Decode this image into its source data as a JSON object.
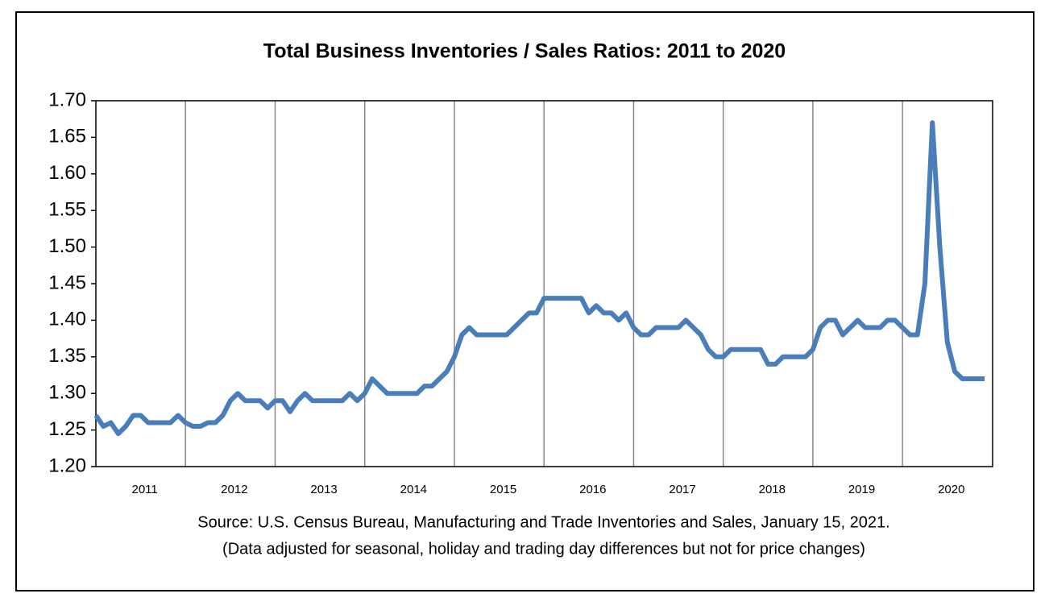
{
  "chart_data": {
    "type": "line",
    "title": "Total Business Inventories / Sales Ratios: 2011 to 2020",
    "source": "Source: U.S. Census Bureau, Manufacturing and Trade Inventories and Sales, January 15, 2021.",
    "note": "(Data adjusted for seasonal, holiday and trading day differences but not for price changes)",
    "categories": [
      null,
      null,
      null,
      null,
      null,
      null,
      "2011",
      null,
      null,
      null,
      null,
      null,
      null,
      null,
      null,
      null,
      null,
      null,
      "2012",
      null,
      null,
      null,
      null,
      null,
      null,
      null,
      null,
      null,
      null,
      null,
      "2013",
      null,
      null,
      null,
      null,
      null,
      null,
      null,
      null,
      null,
      null,
      null,
      "2014",
      null,
      null,
      null,
      null,
      null,
      null,
      null,
      null,
      null,
      null,
      null,
      "2015",
      null,
      null,
      null,
      null,
      null,
      null,
      null,
      null,
      null,
      null,
      null,
      "2016",
      null,
      null,
      null,
      null,
      null,
      null,
      null,
      null,
      null,
      null,
      null,
      "2017",
      null,
      null,
      null,
      null,
      null,
      null,
      null,
      null,
      null,
      null,
      null,
      "2018",
      null,
      null,
      null,
      null,
      null,
      null,
      null,
      null,
      null,
      null,
      null,
      "2019",
      null,
      null,
      null,
      null,
      null,
      null,
      null,
      null,
      null,
      null,
      null,
      "2020",
      null,
      null,
      null,
      null,
      null
    ],
    "series": [
      {
        "name": "Inventories / Sales Ratio",
        "color": "#4a7ebb",
        "values": [
          1.27,
          1.255,
          1.26,
          1.245,
          1.255,
          1.27,
          1.27,
          1.26,
          1.26,
          1.26,
          1.26,
          1.27,
          1.26,
          1.255,
          1.255,
          1.26,
          1.26,
          1.27,
          1.29,
          1.3,
          1.29,
          1.29,
          1.29,
          1.28,
          1.29,
          1.29,
          1.275,
          1.29,
          1.3,
          1.29,
          1.29,
          1.29,
          1.29,
          1.29,
          1.3,
          1.29,
          1.3,
          1.32,
          1.31,
          1.3,
          1.3,
          1.3,
          1.3,
          1.3,
          1.31,
          1.31,
          1.32,
          1.33,
          1.35,
          1.38,
          1.39,
          1.38,
          1.38,
          1.38,
          1.38,
          1.38,
          1.39,
          1.4,
          1.41,
          1.41,
          1.43,
          1.43,
          1.43,
          1.43,
          1.43,
          1.43,
          1.41,
          1.42,
          1.41,
          1.41,
          1.4,
          1.41,
          1.39,
          1.38,
          1.38,
          1.39,
          1.39,
          1.39,
          1.39,
          1.4,
          1.39,
          1.38,
          1.36,
          1.35,
          1.35,
          1.36,
          1.36,
          1.36,
          1.36,
          1.36,
          1.34,
          1.34,
          1.35,
          1.35,
          1.35,
          1.35,
          1.36,
          1.39,
          1.4,
          1.4,
          1.38,
          1.39,
          1.4,
          1.39,
          1.39,
          1.39,
          1.4,
          1.4,
          1.39,
          1.38,
          1.38,
          1.45,
          1.67,
          1.5,
          1.37,
          1.33,
          1.32,
          1.32,
          1.32,
          1.32
        ]
      }
    ],
    "ylim": [
      1.2,
      1.7
    ],
    "yticks": [
      {
        "value": 1.2,
        "label": "1.20"
      },
      1.25,
      {
        "value": 1.3,
        "label": "1.30"
      },
      1.35,
      {
        "value": 1.4,
        "label": "1.40"
      },
      1.45,
      {
        "value": 1.5,
        "label": "1.50"
      },
      1.55,
      {
        "value": 1.6,
        "label": "1.60"
      },
      1.65,
      {
        "value": 1.7,
        "label": "1.70"
      }
    ]
  }
}
